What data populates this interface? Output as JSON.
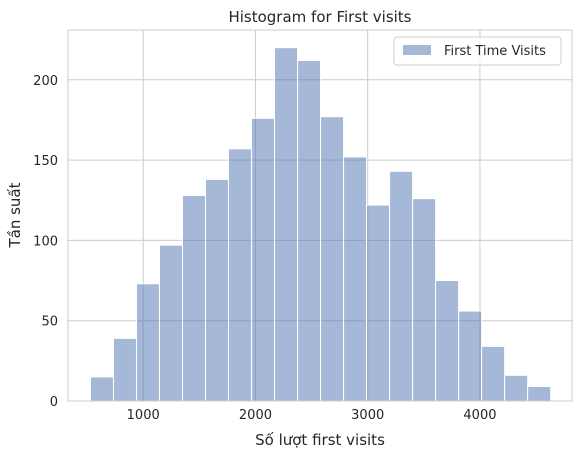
{
  "chart_data": {
    "type": "bar",
    "title": "Histogram for First visits",
    "xlabel": "Số lượt first visits",
    "ylabel": "Tần suất",
    "xlim": [
      330,
      4820
    ],
    "ylim": [
      0,
      231
    ],
    "xticks": [
      1000,
      2000,
      3000,
      4000
    ],
    "yticks": [
      0,
      50,
      100,
      150,
      200
    ],
    "grid": true,
    "legend_position": "top-right",
    "bar_color": "#4c72b0",
    "bar_alpha": 0.5,
    "series": [
      {
        "name": "First Time Visits",
        "bins": [
          {
            "x0": 530,
            "x1": 735,
            "value": 15
          },
          {
            "x0": 735,
            "x1": 940,
            "value": 39
          },
          {
            "x0": 940,
            "x1": 1145,
            "value": 73
          },
          {
            "x0": 1145,
            "x1": 1350,
            "value": 97
          },
          {
            "x0": 1350,
            "x1": 1555,
            "value": 128
          },
          {
            "x0": 1555,
            "x1": 1760,
            "value": 138
          },
          {
            "x0": 1760,
            "x1": 1965,
            "value": 157
          },
          {
            "x0": 1965,
            "x1": 2170,
            "value": 176
          },
          {
            "x0": 2170,
            "x1": 2375,
            "value": 220
          },
          {
            "x0": 2375,
            "x1": 2580,
            "value": 212
          },
          {
            "x0": 2580,
            "x1": 2785,
            "value": 177
          },
          {
            "x0": 2785,
            "x1": 2990,
            "value": 152
          },
          {
            "x0": 2990,
            "x1": 3195,
            "value": 122
          },
          {
            "x0": 3195,
            "x1": 3400,
            "value": 143
          },
          {
            "x0": 3400,
            "x1": 3605,
            "value": 126
          },
          {
            "x0": 3605,
            "x1": 3810,
            "value": 75
          },
          {
            "x0": 3810,
            "x1": 4015,
            "value": 56
          },
          {
            "x0": 4015,
            "x1": 4220,
            "value": 34
          },
          {
            "x0": 4220,
            "x1": 4425,
            "value": 16
          },
          {
            "x0": 4425,
            "x1": 4630,
            "value": 9
          }
        ]
      }
    ]
  }
}
